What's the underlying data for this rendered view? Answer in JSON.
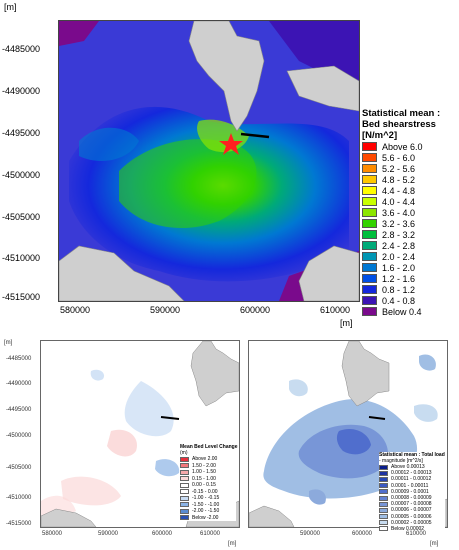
{
  "main": {
    "unit_y": "[m]",
    "unit_x": "[m]",
    "y_ticks": [
      "-4485000",
      "-4490000",
      "-4495000",
      "-4500000",
      "-4505000",
      "-4510000",
      "-4515000"
    ],
    "x_ticks": [
      "580000",
      "590000",
      "600000",
      "610000"
    ],
    "legend_title": "Statistical mean : Bed shearstress [N/m^2]",
    "legend": [
      {
        "label": "Above 6.0",
        "color": "#ff0000"
      },
      {
        "label": "5.6 - 6.0",
        "color": "#ff4a00"
      },
      {
        "label": "5.2 - 5.6",
        "color": "#ff8c00"
      },
      {
        "label": "4.8 - 5.2",
        "color": "#ffc800"
      },
      {
        "label": "4.4 - 4.8",
        "color": "#ffff00"
      },
      {
        "label": "4.0 - 4.4",
        "color": "#c8ff00"
      },
      {
        "label": "3.6 - 4.0",
        "color": "#8ce600"
      },
      {
        "label": "3.2 - 3.6",
        "color": "#32d200"
      },
      {
        "label": "2.8 - 3.2",
        "color": "#00be3c"
      },
      {
        "label": "2.4 - 2.8",
        "color": "#00aa78"
      },
      {
        "label": "2.0 - 2.4",
        "color": "#0096b4"
      },
      {
        "label": "1.6 - 2.0",
        "color": "#0078d2"
      },
      {
        "label": "1.2 - 1.6",
        "color": "#0050e6"
      },
      {
        "label": "0.8 - 1.2",
        "color": "#1428dc"
      },
      {
        "label": "0.4 - 0.8",
        "color": "#3c14b4"
      },
      {
        "label": "Below 0.4",
        "color": "#7a0a8c"
      }
    ]
  },
  "bottom_left": {
    "unit_y": "[m]",
    "unit_x": "[m]",
    "y_ticks": [
      "-4485000",
      "-4490000",
      "-4495000",
      "-4500000",
      "-4505000",
      "-4510000",
      "-4515000"
    ],
    "x_ticks": [
      "580000",
      "590000",
      "600000",
      "610000"
    ],
    "legend_title": "Mean Bed Level Change",
    "legend_unit": "(m)",
    "legend": [
      {
        "label": "Above  2.00",
        "color": "#e8303c"
      },
      {
        "label": "1.50 - 2.00",
        "color": "#f0787c"
      },
      {
        "label": "1.00 - 1.50",
        "color": "#f6a8aa"
      },
      {
        "label": "0.15 - 1.00",
        "color": "#fbd8d8"
      },
      {
        "label": "0.00 - 0.15",
        "color": "#ffffff"
      },
      {
        "label": "-0.15 - 0.00",
        "color": "#ffffff"
      },
      {
        "label": "-1.00 - -0.15",
        "color": "#c8dcf4"
      },
      {
        "label": "-1.50 - -1.00",
        "color": "#8cb4e6"
      },
      {
        "label": "-2.00 - -1.50",
        "color": "#5a8cd2"
      },
      {
        "label": "Below -2.00",
        "color": "#2850b4"
      }
    ]
  },
  "bottom_right": {
    "unit_x": "[m]",
    "x_ticks": [
      "590000",
      "600000",
      "610000"
    ],
    "legend_title": "Statistical mean : Total load",
    "legend_unit": "- magnitude [m^2/s]",
    "legend": [
      {
        "label": "Above    0.00013",
        "color": "#0a1e8c"
      },
      {
        "label": "0.00012 - 0.00013",
        "color": "#1e32a0"
      },
      {
        "label": "0.00011 - 0.00012",
        "color": "#2846b4"
      },
      {
        "label": "0.0001 - 0.00011",
        "color": "#3c5ac3"
      },
      {
        "label": "0.00009 - 0.0001",
        "color": "#506ecd"
      },
      {
        "label": "0.00008 - 0.00009",
        "color": "#6482d2"
      },
      {
        "label": "0.00007 - 0.00008",
        "color": "#7896d7"
      },
      {
        "label": "0.00006 - 0.00007",
        "color": "#8caadc"
      },
      {
        "label": "0.00005 - 0.00006",
        "color": "#a0bee4"
      },
      {
        "label": "0.00002 - 0.00005",
        "color": "#c8dcf0"
      },
      {
        "label": "Below    0.00002",
        "color": "#ffffff"
      }
    ]
  },
  "colors": {
    "deep_blue": "#3a3ad6",
    "land": "#cfcfcf",
    "marker": "#ff2020"
  }
}
